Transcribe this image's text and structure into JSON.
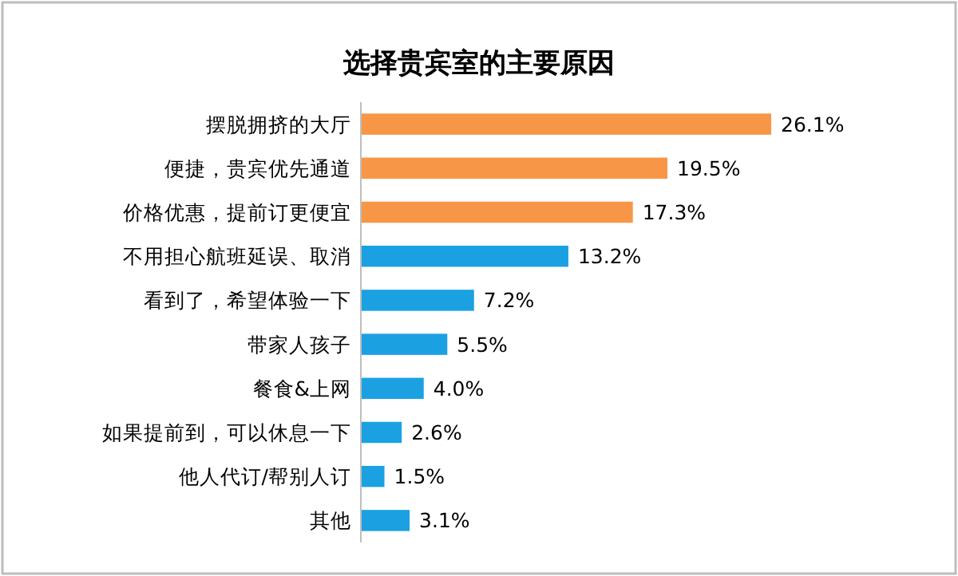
{
  "chart_data": {
    "type": "bar",
    "orientation": "horizontal",
    "title": "选择贵宾室的主要原因",
    "categories": [
      "摆脱拥挤的大厅",
      "便捷，贵宾优先通道",
      "价格优惠，提前订更便宜",
      "不用担心航班延误、取消",
      "看到了，希望体验一下",
      "带家人孩子",
      "餐食&上网",
      "如果提前到，可以休息一下",
      "他人代订/帮别人订",
      "其他"
    ],
    "values": [
      26.1,
      19.5,
      17.3,
      13.2,
      7.2,
      5.5,
      4.0,
      2.6,
      1.5,
      3.1
    ],
    "value_labels": [
      "26.1%",
      "19.5%",
      "17.3%",
      "13.2%",
      "7.2%",
      "5.5%",
      "4.0%",
      "2.6%",
      "1.5%",
      "3.1%"
    ],
    "colors": [
      "#f79646",
      "#f79646",
      "#f79646",
      "#1ba1e2",
      "#1ba1e2",
      "#1ba1e2",
      "#1ba1e2",
      "#1ba1e2",
      "#1ba1e2",
      "#1ba1e2"
    ]
  }
}
